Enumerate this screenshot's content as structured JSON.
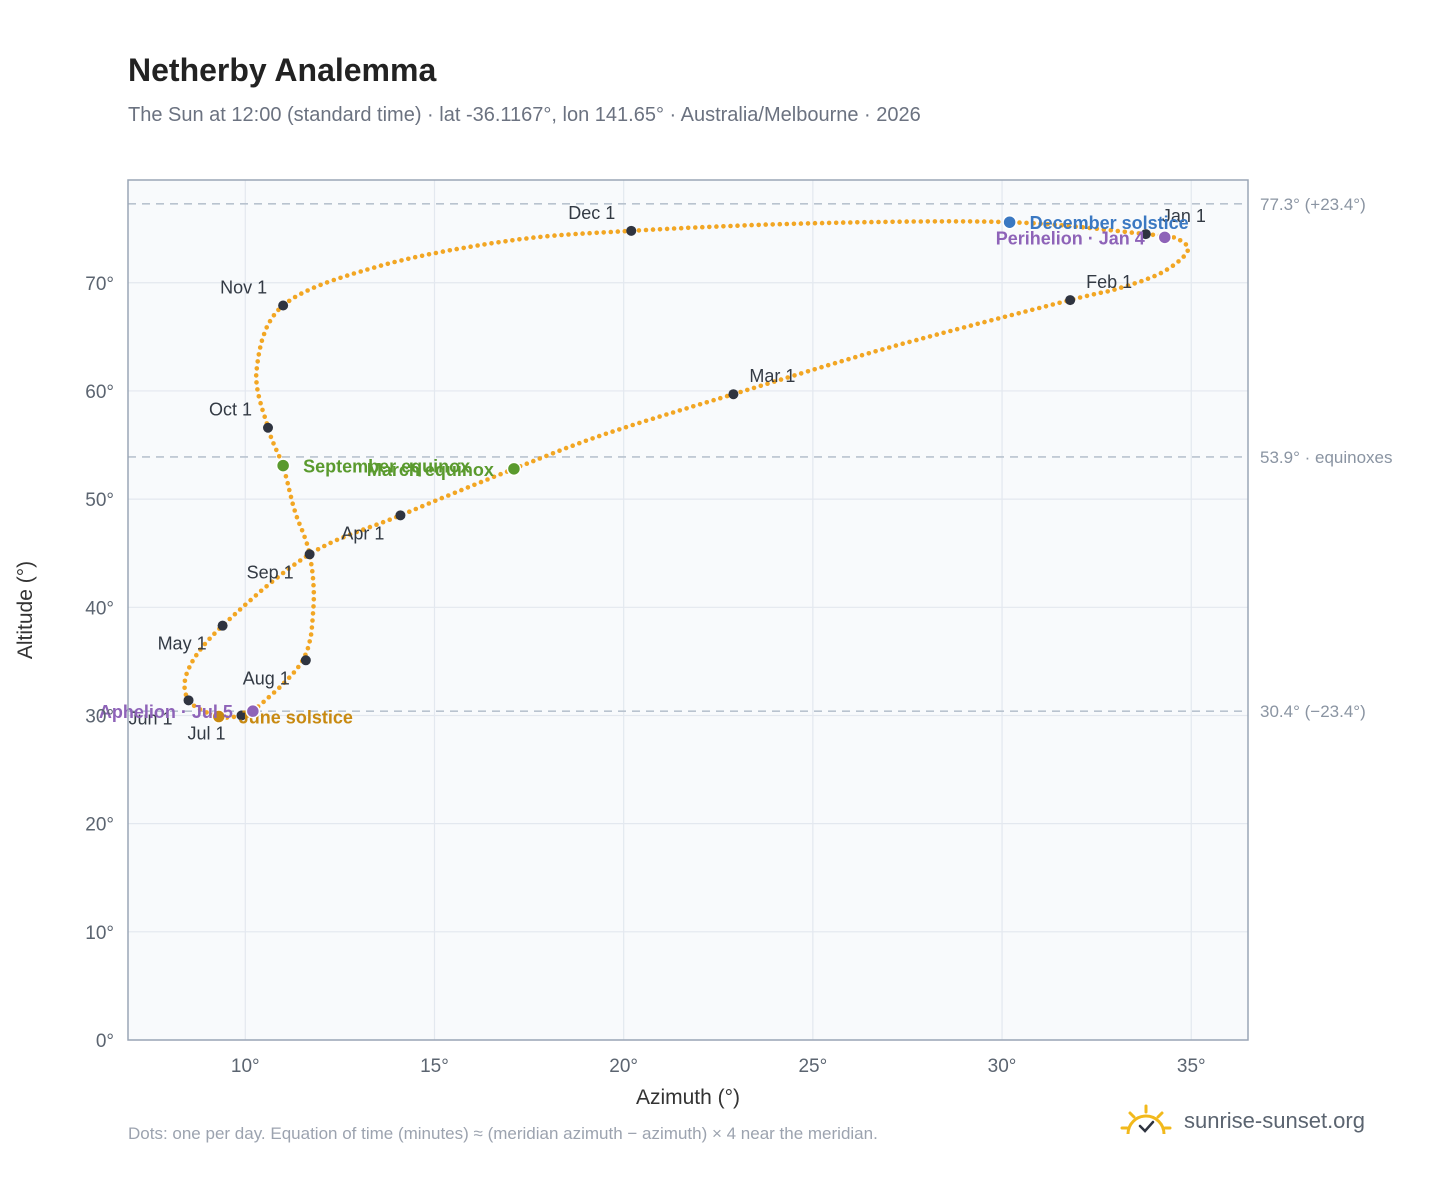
{
  "title": "Netherby Analemma",
  "subtitle": "The Sun at 12:00 (standard time) · lat -36.1167°, lon 141.65° · Australia/Melbourne · 2026",
  "footnote": "Dots: one per day. Equation of time (minutes) ≈ (meridian azimuth − azimuth) × 4 near the meridian.",
  "brand": {
    "name": "sunrise-sunset.org",
    "icon": "sun-logo-icon"
  },
  "colors": {
    "curve": "#f2a623",
    "month_dot": "#2f3440",
    "equinox": "#5a9a2e",
    "december_solstice": "#3a78c2",
    "june_solstice": "#c88a12",
    "perihelion_aphelion": "#8e63b8",
    "plot_bg": "#f8fafc",
    "grid": "#e3e8ef",
    "ref_line": "#b9c3cf",
    "axis_text": "#5b6470",
    "frame": "#9aa6b6"
  },
  "chart_data": {
    "type": "scatter",
    "title": "Netherby Analemma",
    "xlabel": "Azimuth (°)",
    "ylabel": "Altitude (°)",
    "xlim": [
      6.9,
      36.5
    ],
    "ylim": [
      0,
      79.5
    ],
    "xticks": [
      10,
      15,
      20,
      25,
      30,
      35
    ],
    "xtick_labels": [
      "10°",
      "15°",
      "20°",
      "25°",
      "30°",
      "35°"
    ],
    "yticks": [
      0,
      10,
      20,
      30,
      40,
      50,
      60,
      70
    ],
    "ytick_labels": [
      "0°",
      "10°",
      "20°",
      "30°",
      "40°",
      "50°",
      "60°",
      "70°"
    ],
    "grid": true,
    "reference_lines": [
      {
        "y": 77.3,
        "label": "77.3° (+23.4°)"
      },
      {
        "y": 53.9,
        "label": "53.9° · equinoxes"
      },
      {
        "y": 30.4,
        "label": "30.4° (−23.4°)"
      }
    ],
    "curve_keypoints": [
      {
        "x": 33.8,
        "y": 74.5
      },
      {
        "x": 34.6,
        "y": 74.1
      },
      {
        "x": 34.9,
        "y": 72.9
      },
      {
        "x": 34.2,
        "y": 70.9
      },
      {
        "x": 33.0,
        "y": 69.4
      },
      {
        "x": 31.8,
        "y": 68.4
      },
      {
        "x": 27.0,
        "y": 64.0
      },
      {
        "x": 22.9,
        "y": 59.7
      },
      {
        "x": 19.5,
        "y": 56.0
      },
      {
        "x": 17.1,
        "y": 52.8
      },
      {
        "x": 14.1,
        "y": 48.5
      },
      {
        "x": 11.7,
        "y": 44.9
      },
      {
        "x": 9.4,
        "y": 38.3
      },
      {
        "x": 8.5,
        "y": 34.3
      },
      {
        "x": 8.5,
        "y": 31.4
      },
      {
        "x": 9.3,
        "y": 29.9
      },
      {
        "x": 9.9,
        "y": 30.0
      },
      {
        "x": 10.2,
        "y": 30.4
      },
      {
        "x": 11.5,
        "y": 35.0
      },
      {
        "x": 11.8,
        "y": 40.0
      },
      {
        "x": 11.7,
        "y": 44.9
      },
      {
        "x": 11.3,
        "y": 49.0
      },
      {
        "x": 11.0,
        "y": 53.0
      },
      {
        "x": 10.6,
        "y": 56.6
      },
      {
        "x": 10.3,
        "y": 62.0
      },
      {
        "x": 11.0,
        "y": 67.9
      },
      {
        "x": 13.5,
        "y": 71.5
      },
      {
        "x": 17.0,
        "y": 73.9
      },
      {
        "x": 20.2,
        "y": 74.8
      },
      {
        "x": 25.0,
        "y": 75.5
      },
      {
        "x": 30.2,
        "y": 75.6
      },
      {
        "x": 33.8,
        "y": 74.5
      }
    ],
    "month_markers": [
      {
        "label": "Jan 1",
        "x": 33.8,
        "y": 74.5,
        "anchor": "above-right"
      },
      {
        "label": "Feb 1",
        "x": 31.8,
        "y": 68.4,
        "anchor": "above-right"
      },
      {
        "label": "Mar 1",
        "x": 22.9,
        "y": 59.7,
        "anchor": "above-right"
      },
      {
        "label": "Apr 1",
        "x": 14.1,
        "y": 48.5,
        "anchor": "below-left"
      },
      {
        "label": "May 1",
        "x": 9.4,
        "y": 38.3,
        "anchor": "below-left"
      },
      {
        "label": "Jun 1",
        "x": 8.5,
        "y": 31.4,
        "anchor": "below-left"
      },
      {
        "label": "Jul 1",
        "x": 9.9,
        "y": 30.0,
        "anchor": "below-left"
      },
      {
        "label": "Aug 1",
        "x": 11.6,
        "y": 35.1,
        "anchor": "below-left"
      },
      {
        "label": "Sep 1",
        "x": 11.7,
        "y": 44.9,
        "anchor": "below-left"
      },
      {
        "label": "Oct 1",
        "x": 10.6,
        "y": 56.6,
        "anchor": "above-left"
      },
      {
        "label": "Nov 1",
        "x": 11.0,
        "y": 67.9,
        "anchor": "above-left"
      },
      {
        "label": "Dec 1",
        "x": 20.2,
        "y": 74.8,
        "anchor": "above-left"
      }
    ],
    "special_events": [
      {
        "label": "December solstice",
        "x": 30.2,
        "y": 75.6,
        "color_key": "december_solstice",
        "anchor": "right"
      },
      {
        "label": "Perihelion · Jan 4",
        "x": 34.3,
        "y": 74.2,
        "color_key": "perihelion_aphelion",
        "anchor": "left"
      },
      {
        "label": "March equinox",
        "x": 17.1,
        "y": 52.8,
        "color_key": "equinox",
        "anchor": "left"
      },
      {
        "label": "September equinox",
        "x": 11.0,
        "y": 53.1,
        "color_key": "equinox",
        "anchor": "right"
      },
      {
        "label": "June solstice",
        "x": 9.3,
        "y": 29.9,
        "color_key": "june_solstice",
        "anchor": "right"
      },
      {
        "label": "Aphelion · Jul 5",
        "x": 10.2,
        "y": 30.4,
        "color_key": "perihelion_aphelion",
        "anchor": "left"
      }
    ]
  }
}
